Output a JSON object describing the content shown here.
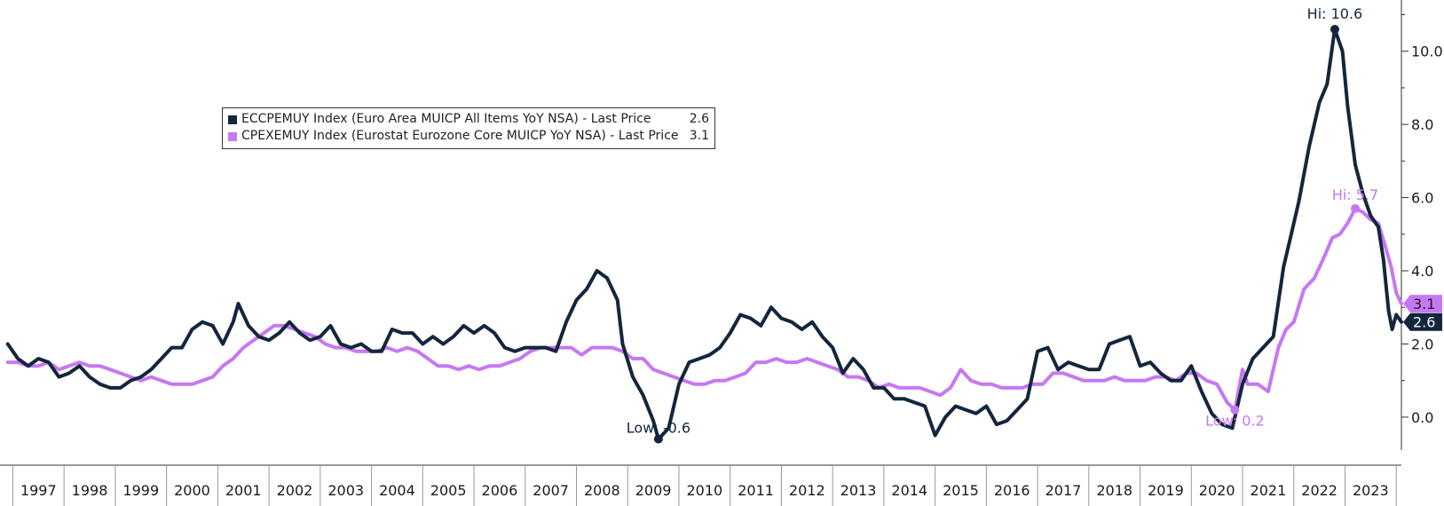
{
  "colors": {
    "cpi": "#13263d",
    "core": "#c678f2",
    "axis": "#333333"
  },
  "legend": {
    "items": [
      {
        "label": "ECCPEMUY Index (Euro Area MUICP All Items YoY NSA) - Last Price",
        "value": "2.6",
        "color": "#13263d"
      },
      {
        "label": "CPEXEMUY Index (Eurostat Eurozone Core MUICP YoY NSA) - Last Price",
        "value": "3.1",
        "color": "#c678f2"
      }
    ]
  },
  "annotations": {
    "cpi_hi": "Hi: 10.6",
    "cpi_low": "Low: -0.6",
    "core_hi": "Hi: 5.7",
    "core_low": "Low: 0.2",
    "cpi_last": "2.6",
    "core_last": "3.1"
  },
  "chart_data": {
    "type": "line",
    "title": "",
    "xlabel": "",
    "ylabel": "",
    "xlim": [
      1996.75,
      2024.1
    ],
    "ylim": [
      -0.9,
      11.4
    ],
    "yticks": [
      "0.0",
      "2.0",
      "4.0",
      "6.0",
      "8.0",
      "10.0"
    ],
    "xticks": [
      "1997",
      "1998",
      "1999",
      "2000",
      "2001",
      "2002",
      "2003",
      "2004",
      "2005",
      "2006",
      "2007",
      "2008",
      "2009",
      "2010",
      "2011",
      "2012",
      "2013",
      "2014",
      "2015",
      "2016",
      "2017",
      "2018",
      "2019",
      "2020",
      "2021",
      "2022",
      "2023"
    ],
    "grid": false,
    "legend_position": "top-left",
    "series": [
      {
        "name": "ECCPEMUY Index (Euro Area MUICP All Items YoY NSA) - Last Price",
        "color": "#13263d",
        "points": [
          [
            1996.9,
            2.0
          ],
          [
            1997.1,
            1.6
          ],
          [
            1997.3,
            1.4
          ],
          [
            1997.5,
            1.6
          ],
          [
            1997.7,
            1.5
          ],
          [
            1997.9,
            1.1
          ],
          [
            1998.1,
            1.2
          ],
          [
            1998.3,
            1.4
          ],
          [
            1998.5,
            1.1
          ],
          [
            1998.7,
            0.9
          ],
          [
            1998.9,
            0.8
          ],
          [
            1999.1,
            0.8
          ],
          [
            1999.3,
            1.0
          ],
          [
            1999.5,
            1.1
          ],
          [
            1999.7,
            1.3
          ],
          [
            1999.9,
            1.6
          ],
          [
            2000.1,
            1.9
          ],
          [
            2000.3,
            1.9
          ],
          [
            2000.5,
            2.4
          ],
          [
            2000.7,
            2.6
          ],
          [
            2000.9,
            2.5
          ],
          [
            2001.1,
            2.0
          ],
          [
            2001.3,
            2.6
          ],
          [
            2001.4,
            3.1
          ],
          [
            2001.6,
            2.5
          ],
          [
            2001.8,
            2.2
          ],
          [
            2002.0,
            2.1
          ],
          [
            2002.2,
            2.3
          ],
          [
            2002.4,
            2.6
          ],
          [
            2002.6,
            2.3
          ],
          [
            2002.8,
            2.1
          ],
          [
            2003.0,
            2.2
          ],
          [
            2003.2,
            2.5
          ],
          [
            2003.4,
            2.0
          ],
          [
            2003.6,
            1.9
          ],
          [
            2003.8,
            2.0
          ],
          [
            2004.0,
            1.8
          ],
          [
            2004.2,
            1.8
          ],
          [
            2004.4,
            2.4
          ],
          [
            2004.6,
            2.3
          ],
          [
            2004.8,
            2.3
          ],
          [
            2005.0,
            2.0
          ],
          [
            2005.2,
            2.2
          ],
          [
            2005.4,
            2.0
          ],
          [
            2005.6,
            2.2
          ],
          [
            2005.8,
            2.5
          ],
          [
            2006.0,
            2.3
          ],
          [
            2006.2,
            2.5
          ],
          [
            2006.4,
            2.3
          ],
          [
            2006.6,
            1.9
          ],
          [
            2006.8,
            1.8
          ],
          [
            2007.0,
            1.9
          ],
          [
            2007.2,
            1.9
          ],
          [
            2007.4,
            1.9
          ],
          [
            2007.6,
            1.8
          ],
          [
            2007.8,
            2.6
          ],
          [
            2008.0,
            3.2
          ],
          [
            2008.2,
            3.5
          ],
          [
            2008.4,
            4.0
          ],
          [
            2008.6,
            3.8
          ],
          [
            2008.8,
            3.2
          ],
          [
            2008.9,
            2.0
          ],
          [
            2009.1,
            1.1
          ],
          [
            2009.3,
            0.6
          ],
          [
            2009.5,
            -0.1
          ],
          [
            2009.6,
            -0.6
          ],
          [
            2009.8,
            -0.3
          ],
          [
            2010.0,
            0.9
          ],
          [
            2010.2,
            1.5
          ],
          [
            2010.4,
            1.6
          ],
          [
            2010.6,
            1.7
          ],
          [
            2010.8,
            1.9
          ],
          [
            2011.0,
            2.3
          ],
          [
            2011.2,
            2.8
          ],
          [
            2011.4,
            2.7
          ],
          [
            2011.6,
            2.5
          ],
          [
            2011.8,
            3.0
          ],
          [
            2012.0,
            2.7
          ],
          [
            2012.2,
            2.6
          ],
          [
            2012.4,
            2.4
          ],
          [
            2012.6,
            2.6
          ],
          [
            2012.8,
            2.2
          ],
          [
            2013.0,
            1.9
          ],
          [
            2013.2,
            1.2
          ],
          [
            2013.4,
            1.6
          ],
          [
            2013.6,
            1.3
          ],
          [
            2013.8,
            0.8
          ],
          [
            2014.0,
            0.8
          ],
          [
            2014.2,
            0.5
          ],
          [
            2014.4,
            0.5
          ],
          [
            2014.6,
            0.4
          ],
          [
            2014.8,
            0.3
          ],
          [
            2015.0,
            -0.5
          ],
          [
            2015.2,
            0.0
          ],
          [
            2015.4,
            0.3
          ],
          [
            2015.6,
            0.2
          ],
          [
            2015.8,
            0.1
          ],
          [
            2016.0,
            0.3
          ],
          [
            2016.2,
            -0.2
          ],
          [
            2016.4,
            -0.1
          ],
          [
            2016.6,
            0.2
          ],
          [
            2016.8,
            0.5
          ],
          [
            2017.0,
            1.8
          ],
          [
            2017.2,
            1.9
          ],
          [
            2017.4,
            1.3
          ],
          [
            2017.6,
            1.5
          ],
          [
            2017.8,
            1.4
          ],
          [
            2018.0,
            1.3
          ],
          [
            2018.2,
            1.3
          ],
          [
            2018.4,
            2.0
          ],
          [
            2018.6,
            2.1
          ],
          [
            2018.8,
            2.2
          ],
          [
            2019.0,
            1.4
          ],
          [
            2019.2,
            1.5
          ],
          [
            2019.4,
            1.2
          ],
          [
            2019.6,
            1.0
          ],
          [
            2019.8,
            1.0
          ],
          [
            2020.0,
            1.4
          ],
          [
            2020.2,
            0.7
          ],
          [
            2020.4,
            0.1
          ],
          [
            2020.6,
            -0.2
          ],
          [
            2020.8,
            -0.3
          ],
          [
            2021.0,
            0.9
          ],
          [
            2021.2,
            1.6
          ],
          [
            2021.4,
            1.9
          ],
          [
            2021.6,
            2.2
          ],
          [
            2021.8,
            4.1
          ],
          [
            2021.95,
            5.0
          ],
          [
            2022.1,
            5.9
          ],
          [
            2022.3,
            7.4
          ],
          [
            2022.5,
            8.6
          ],
          [
            2022.65,
            9.1
          ],
          [
            2022.8,
            10.6
          ],
          [
            2022.95,
            10.0
          ],
          [
            2023.05,
            8.5
          ],
          [
            2023.2,
            6.9
          ],
          [
            2023.35,
            6.1
          ],
          [
            2023.5,
            5.5
          ],
          [
            2023.65,
            5.2
          ],
          [
            2023.75,
            4.3
          ],
          [
            2023.85,
            2.9
          ],
          [
            2023.92,
            2.4
          ],
          [
            2024.0,
            2.8
          ],
          [
            2024.1,
            2.6
          ]
        ]
      },
      {
        "name": "CPEXEMUY Index (Eurostat Eurozone Core MUICP YoY NSA) - Last Price",
        "color": "#c678f2",
        "points": [
          [
            1996.9,
            1.5
          ],
          [
            1997.1,
            1.5
          ],
          [
            1997.3,
            1.4
          ],
          [
            1997.5,
            1.4
          ],
          [
            1997.7,
            1.5
          ],
          [
            1997.9,
            1.3
          ],
          [
            1998.1,
            1.4
          ],
          [
            1998.3,
            1.5
          ],
          [
            1998.5,
            1.4
          ],
          [
            1998.7,
            1.4
          ],
          [
            1998.9,
            1.3
          ],
          [
            1999.1,
            1.2
          ],
          [
            1999.3,
            1.1
          ],
          [
            1999.5,
            1.0
          ],
          [
            1999.7,
            1.1
          ],
          [
            1999.9,
            1.0
          ],
          [
            2000.1,
            0.9
          ],
          [
            2000.3,
            0.9
          ],
          [
            2000.5,
            0.9
          ],
          [
            2000.7,
            1.0
          ],
          [
            2000.9,
            1.1
          ],
          [
            2001.1,
            1.4
          ],
          [
            2001.3,
            1.6
          ],
          [
            2001.5,
            1.9
          ],
          [
            2001.7,
            2.1
          ],
          [
            2001.9,
            2.3
          ],
          [
            2002.1,
            2.5
          ],
          [
            2002.3,
            2.5
          ],
          [
            2002.5,
            2.4
          ],
          [
            2002.7,
            2.3
          ],
          [
            2002.9,
            2.2
          ],
          [
            2003.1,
            2.0
          ],
          [
            2003.3,
            1.9
          ],
          [
            2003.5,
            1.9
          ],
          [
            2003.7,
            1.8
          ],
          [
            2003.9,
            1.8
          ],
          [
            2004.1,
            1.8
          ],
          [
            2004.3,
            1.9
          ],
          [
            2004.5,
            1.8
          ],
          [
            2004.7,
            1.9
          ],
          [
            2004.9,
            1.8
          ],
          [
            2005.1,
            1.6
          ],
          [
            2005.3,
            1.4
          ],
          [
            2005.5,
            1.4
          ],
          [
            2005.7,
            1.3
          ],
          [
            2005.9,
            1.4
          ],
          [
            2006.1,
            1.3
          ],
          [
            2006.3,
            1.4
          ],
          [
            2006.5,
            1.4
          ],
          [
            2006.7,
            1.5
          ],
          [
            2006.9,
            1.6
          ],
          [
            2007.1,
            1.8
          ],
          [
            2007.3,
            1.9
          ],
          [
            2007.5,
            1.9
          ],
          [
            2007.7,
            1.9
          ],
          [
            2007.9,
            1.9
          ],
          [
            2008.1,
            1.7
          ],
          [
            2008.3,
            1.9
          ],
          [
            2008.5,
            1.9
          ],
          [
            2008.7,
            1.9
          ],
          [
            2008.9,
            1.8
          ],
          [
            2009.1,
            1.6
          ],
          [
            2009.3,
            1.6
          ],
          [
            2009.5,
            1.3
          ],
          [
            2009.7,
            1.2
          ],
          [
            2009.9,
            1.1
          ],
          [
            2010.1,
            1.0
          ],
          [
            2010.3,
            0.9
          ],
          [
            2010.5,
            0.9
          ],
          [
            2010.7,
            1.0
          ],
          [
            2010.9,
            1.0
          ],
          [
            2011.1,
            1.1
          ],
          [
            2011.3,
            1.2
          ],
          [
            2011.5,
            1.5
          ],
          [
            2011.7,
            1.5
          ],
          [
            2011.9,
            1.6
          ],
          [
            2012.1,
            1.5
          ],
          [
            2012.3,
            1.5
          ],
          [
            2012.5,
            1.6
          ],
          [
            2012.7,
            1.5
          ],
          [
            2012.9,
            1.4
          ],
          [
            2013.1,
            1.3
          ],
          [
            2013.3,
            1.1
          ],
          [
            2013.5,
            1.1
          ],
          [
            2013.7,
            1.0
          ],
          [
            2013.9,
            0.8
          ],
          [
            2014.1,
            0.9
          ],
          [
            2014.3,
            0.8
          ],
          [
            2014.5,
            0.8
          ],
          [
            2014.7,
            0.8
          ],
          [
            2014.9,
            0.7
          ],
          [
            2015.1,
            0.6
          ],
          [
            2015.3,
            0.8
          ],
          [
            2015.5,
            1.3
          ],
          [
            2015.7,
            1.0
          ],
          [
            2015.9,
            0.9
          ],
          [
            2016.1,
            0.9
          ],
          [
            2016.3,
            0.8
          ],
          [
            2016.5,
            0.8
          ],
          [
            2016.7,
            0.8
          ],
          [
            2016.9,
            0.9
          ],
          [
            2017.1,
            0.9
          ],
          [
            2017.3,
            1.2
          ],
          [
            2017.5,
            1.2
          ],
          [
            2017.7,
            1.1
          ],
          [
            2017.9,
            1.0
          ],
          [
            2018.1,
            1.0
          ],
          [
            2018.3,
            1.0
          ],
          [
            2018.5,
            1.1
          ],
          [
            2018.7,
            1.0
          ],
          [
            2018.9,
            1.0
          ],
          [
            2019.1,
            1.0
          ],
          [
            2019.3,
            1.1
          ],
          [
            2019.5,
            1.1
          ],
          [
            2019.7,
            1.0
          ],
          [
            2019.9,
            1.2
          ],
          [
            2020.1,
            1.2
          ],
          [
            2020.3,
            1.0
          ],
          [
            2020.5,
            0.9
          ],
          [
            2020.7,
            0.4
          ],
          [
            2020.85,
            0.2
          ],
          [
            2021.0,
            1.3
          ],
          [
            2021.1,
            0.9
          ],
          [
            2021.3,
            0.9
          ],
          [
            2021.5,
            0.7
          ],
          [
            2021.7,
            1.9
          ],
          [
            2021.85,
            2.4
          ],
          [
            2022.0,
            2.6
          ],
          [
            2022.2,
            3.5
          ],
          [
            2022.4,
            3.8
          ],
          [
            2022.6,
            4.4
          ],
          [
            2022.75,
            4.9
          ],
          [
            2022.9,
            5.0
          ],
          [
            2023.05,
            5.3
          ],
          [
            2023.2,
            5.7
          ],
          [
            2023.35,
            5.6
          ],
          [
            2023.5,
            5.4
          ],
          [
            2023.65,
            5.3
          ],
          [
            2023.8,
            4.6
          ],
          [
            2023.9,
            4.1
          ],
          [
            2024.0,
            3.4
          ],
          [
            2024.1,
            3.1
          ]
        ]
      }
    ]
  }
}
